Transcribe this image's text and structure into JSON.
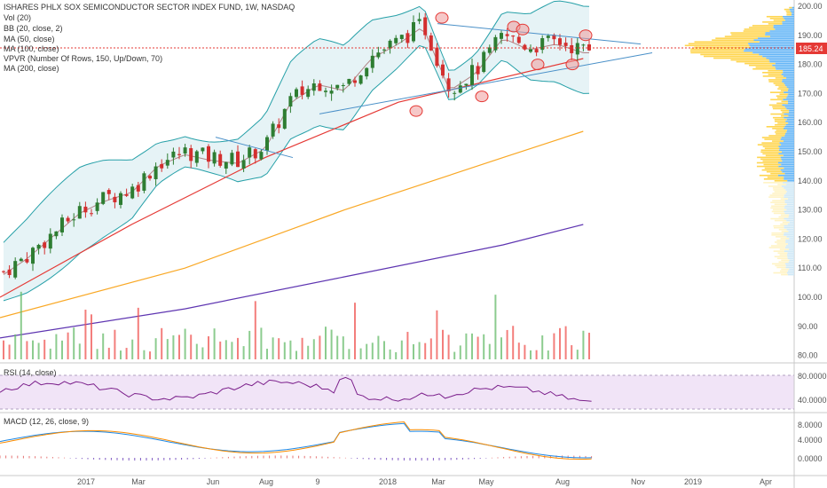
{
  "chart_data": [
    {
      "type": "candlestick",
      "title": "ISHARES PHLX SOX SEMICONDUCTOR SECTOR INDEX FUND, 1W, NASDAQ",
      "indicators": [
        "Vol (20)",
        "BB (20, close, 2)",
        "MA (50, close)",
        "MA (100, close)",
        "VPVR (Number Of Rows, 150, Up/Down, 70)",
        "MA (200, close)"
      ],
      "last_price": "185.24",
      "x_ticks": [
        "2017",
        "Mar",
        "Jun",
        "Aug",
        "9",
        "2018",
        "Mar",
        "May",
        "Aug",
        "Nov",
        "2019",
        "Apr"
      ],
      "y_ticks": [
        "200.00",
        "190.00",
        "180.00",
        "170.00",
        "160.00",
        "150.00",
        "140.00",
        "130.00",
        "120.00",
        "110.00",
        "100.00",
        "90.00",
        "80.00"
      ],
      "ylim": [
        78,
        201
      ],
      "close_path": [
        [
          "2016-11-01",
          108
        ],
        [
          "2016-12-01",
          114
        ],
        [
          "2017-01-01",
          122
        ],
        [
          "2017-02-01",
          130
        ],
        [
          "2017-03-01",
          134
        ],
        [
          "2017-04-01",
          137
        ],
        [
          "2017-05-01",
          146
        ],
        [
          "2017-06-01",
          150
        ],
        [
          "2017-07-01",
          148
        ],
        [
          "2017-08-01",
          147
        ],
        [
          "2017-09-01",
          152
        ],
        [
          "2017-10-01",
          168
        ],
        [
          "2017-11-01",
          174
        ],
        [
          "2017-12-01",
          172
        ],
        [
          "2018-01-01",
          183
        ],
        [
          "2018-02-01",
          188
        ],
        [
          "2018-03-01",
          194
        ],
        [
          "2018-04-01",
          172
        ],
        [
          "2018-05-01",
          178
        ],
        [
          "2018-06-01",
          190
        ],
        [
          "2018-07-01",
          186
        ],
        [
          "2018-08-01",
          188
        ],
        [
          "2018-09-01",
          185
        ]
      ],
      "ma50": [
        [
          "2016-11-01",
          100
        ],
        [
          "2017-04-01",
          125
        ],
        [
          "2017-09-01",
          148
        ],
        [
          "2018-02-01",
          167
        ],
        [
          "2018-09-01",
          182
        ]
      ],
      "ma100": [
        [
          "2016-11-01",
          93
        ],
        [
          "2017-06-01",
          110
        ],
        [
          "2017-12-01",
          130
        ],
        [
          "2018-06-01",
          148
        ],
        [
          "2018-09-01",
          157
        ]
      ],
      "ma200": [
        [
          "2016-11-01",
          86
        ],
        [
          "2017-06-01",
          96
        ],
        [
          "2017-12-01",
          107
        ],
        [
          "2018-06-01",
          118
        ],
        [
          "2018-09-01",
          125
        ]
      ]
    },
    {
      "type": "line",
      "title": "RSI (14, close)",
      "y_ticks": [
        "80.0000",
        "40.0000"
      ],
      "ylim": [
        20,
        90
      ],
      "band": [
        30,
        70
      ]
    },
    {
      "type": "line",
      "title": "MACD (12, 26, close, 9)",
      "y_ticks": [
        "8.0000",
        "4.0000",
        "0.0000"
      ],
      "ylim": [
        -2,
        10
      ]
    }
  ]
}
